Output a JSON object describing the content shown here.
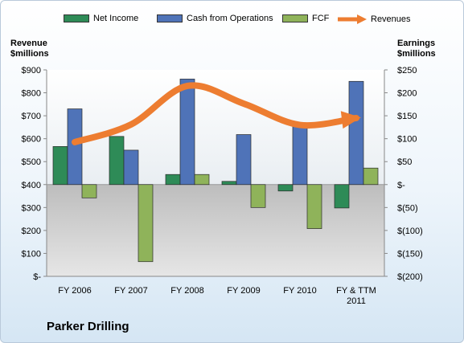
{
  "chart_data": {
    "type": "bar",
    "title": "Parker Drilling",
    "categories": [
      "FY 2006",
      "FY 2007",
      "FY 2008",
      "FY 2009",
      "FY 2010",
      "FY & TTM 2011"
    ],
    "left_axis": {
      "label_line1": "Revenue",
      "label_line2": "$millions",
      "ylim": [
        0,
        900
      ],
      "ticks": [
        "$-",
        "$100",
        "$200",
        "$300",
        "$400",
        "$500",
        "$600",
        "$700",
        "$800",
        "$900"
      ]
    },
    "right_axis": {
      "label_line1": "Earnings",
      "label_line2": "$millions",
      "ylim": [
        -200,
        250
      ],
      "ticks": [
        "$(200)",
        "$(150)",
        "$(100)",
        "$(50)",
        "$-",
        "$50",
        "$100",
        "$150",
        "$200",
        "$250"
      ]
    },
    "series": [
      {
        "name": "Net Income",
        "axis": "right",
        "color": "#2e8b57",
        "values": [
          83,
          105,
          22,
          7,
          -14,
          -51
        ]
      },
      {
        "name": "Cash from Operations",
        "axis": "right",
        "color": "#4f73b8",
        "values": [
          165,
          75,
          230,
          109,
          130,
          225
        ]
      },
      {
        "name": "FCF",
        "axis": "right",
        "color": "#8fb35a",
        "values": [
          -29,
          -168,
          22,
          -50,
          -96,
          36
        ]
      },
      {
        "name": "Revenues",
        "axis": "left",
        "type": "line",
        "color": "#ed7d31",
        "values": [
          585,
          662,
          830,
          753,
          660,
          690
        ]
      }
    ],
    "legend_position": "top",
    "grid": false
  }
}
